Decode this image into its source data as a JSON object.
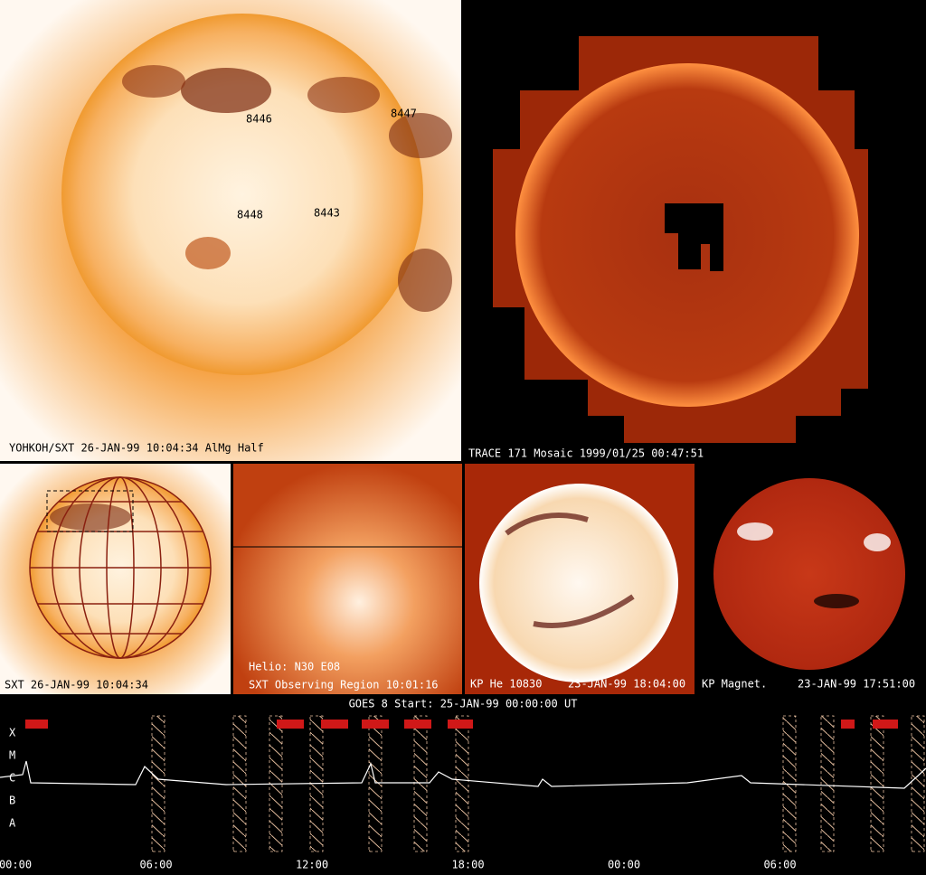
{
  "panels": {
    "sxt_full": {
      "caption": "YOHKOH/SXT 26-JAN-99  10:04:34 AlMg  Half",
      "regions": [
        "8446",
        "8447",
        "8448",
        "8443"
      ]
    },
    "trace": {
      "caption": "TRACE 171 Mosaic 1999/01/25 00:47:51"
    },
    "sxt_grid": {
      "caption": "SXT 26-JAN-99  10:04:34"
    },
    "sxt_zoom": {
      "helio": "Helio: N30 E08",
      "caption": "SXT Observing Region 10:01:16"
    },
    "kp_he": {
      "name": "KP He 10830",
      "time": "23-JAN-99  18:04:00"
    },
    "kp_mag": {
      "name": "KP Magnet.",
      "time": "23-JAN-99  17:51:00"
    }
  },
  "goes": {
    "title": "GOES 8 Start: 25-JAN-99  00:00:00 UT",
    "classes": [
      "X",
      "M",
      "C",
      "B",
      "A"
    ],
    "time_ticks": [
      "00:00",
      "06:00",
      "12:00",
      "18:00",
      "00:00",
      "06:00"
    ]
  }
}
